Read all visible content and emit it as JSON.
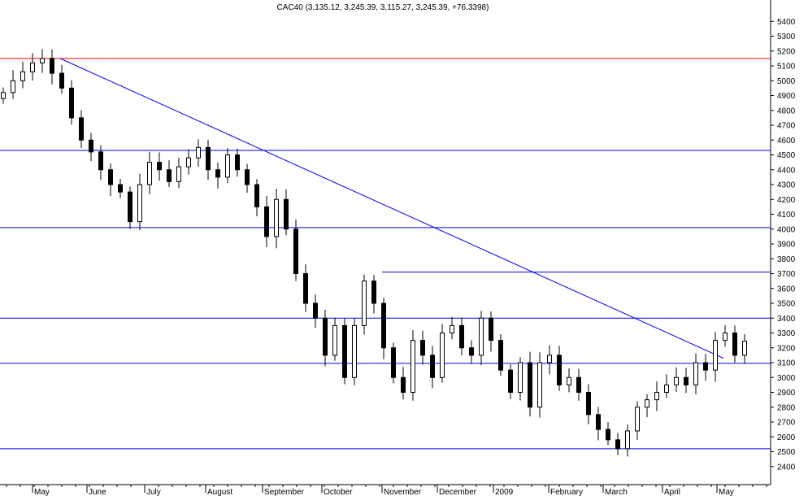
{
  "chart_data": {
    "type": "candlestick",
    "title": "CAC40 (3,135.12, 3,245.39, 3,115.27, 3,245.39, +76.3398)",
    "ylim": [
      2300,
      5500
    ],
    "yticks": [
      2400,
      2500,
      2600,
      2700,
      2800,
      2900,
      3000,
      3100,
      3200,
      3300,
      3400,
      3500,
      3600,
      3700,
      3800,
      3900,
      4000,
      4100,
      4200,
      4300,
      4400,
      4500,
      4600,
      4700,
      4800,
      4900,
      5000,
      5100,
      5200,
      5300,
      5400
    ],
    "months": [
      "May",
      "June",
      "July",
      "August",
      "September",
      "October",
      "November",
      "December",
      "2009",
      "February",
      "March",
      "April",
      "May"
    ],
    "horizontal_levels": [
      {
        "value": 5150,
        "color": "#ff0000"
      },
      {
        "value": 4530,
        "color": "#0000ff"
      },
      {
        "value": 4010,
        "color": "#0000ff"
      },
      {
        "value": 3400,
        "color": "#0000ff"
      },
      {
        "value": 3095,
        "color": "#0000ff"
      },
      {
        "value": 2520,
        "color": "#0000ff"
      }
    ],
    "resistance_segment": {
      "value": 3710,
      "from_month": "November",
      "color": "#0000ff"
    },
    "trendline": {
      "start_value": 5150,
      "end_value": 3130,
      "start_month": "May",
      "end_month": "May",
      "color": "#0000ff"
    },
    "series_close": [
      4920,
      5000,
      5060,
      5120,
      5150,
      5050,
      4950,
      4750,
      4600,
      4520,
      4400,
      4300,
      4250,
      4050,
      4300,
      4450,
      4400,
      4320,
      4420,
      4480,
      4550,
      4400,
      4350,
      4500,
      4400,
      4300,
      4150,
      3950,
      4200,
      4000,
      3700,
      3500,
      3400,
      3150,
      3350,
      3000,
      3350,
      3650,
      3500,
      3200,
      3000,
      2900,
      3250,
      3150,
      3000,
      3300,
      3350,
      3200,
      3150,
      3400,
      3250,
      3050,
      2900,
      3100,
      2800,
      3100,
      3150,
      2950,
      3000,
      2900,
      2750,
      2650,
      2580,
      2520,
      2640,
      2800,
      2850,
      2900,
      2950,
      3000,
      2950,
      3100,
      3050,
      3250,
      3300,
      3150,
      3245
    ]
  },
  "colors": {
    "grid": "#000000",
    "up_candle": "#ffffff",
    "down_candle": "#000000",
    "axis": "#000000"
  }
}
